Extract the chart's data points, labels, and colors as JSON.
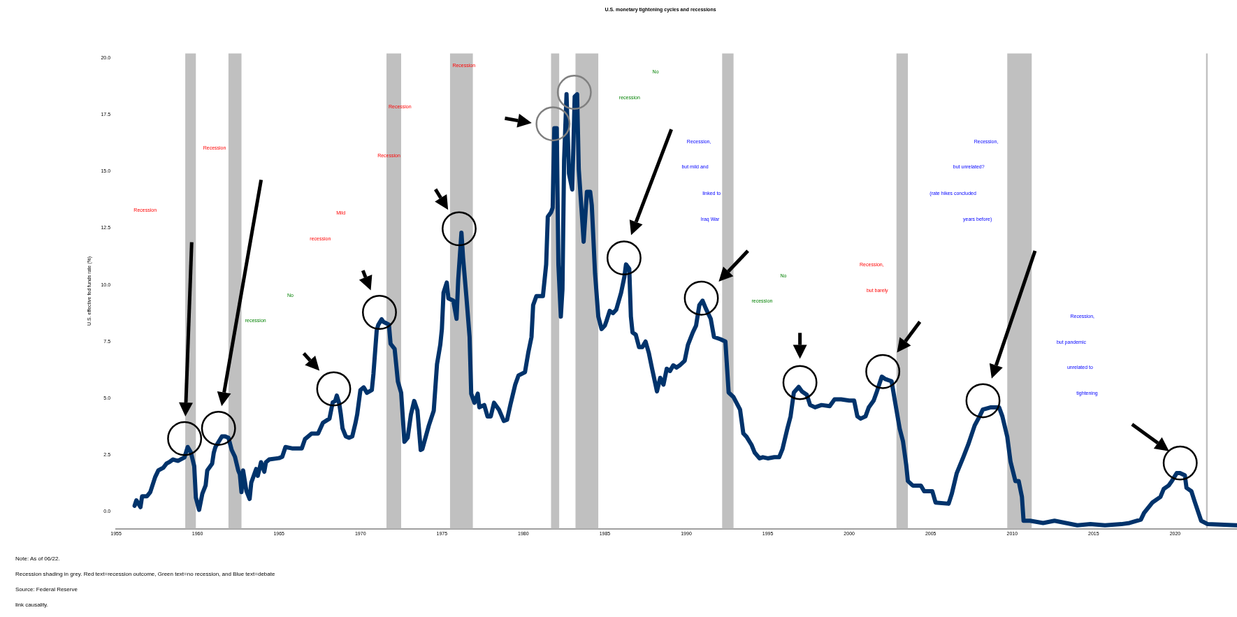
{
  "chart_data": {
    "type": "line",
    "title": "U.S. monetary tightening cycles and recessions",
    "ylabel": "U.S. effective fed funds rate (%)",
    "xlim": [
      1955,
      2023.8
    ],
    "xticks": [
      1955,
      1960,
      1965,
      1970,
      1975,
      1980,
      1985,
      1990,
      1995,
      2000,
      2005,
      2010,
      2015,
      2020
    ],
    "ylim": [
      -0.75,
      20.2
    ],
    "yticks": [
      {
        "value": 0,
        "label": "0.0"
      },
      2.5,
      {
        "value": 5,
        "label": "5.0"
      },
      7.5,
      {
        "value": 10,
        "label": "10.0"
      },
      12.5,
      {
        "value": 15,
        "label": "15.0"
      },
      17.5,
      {
        "value": 20,
        "label": "20.0"
      }
    ],
    "grid": false,
    "legend": false,
    "marker": "none",
    "line_style": "solid",
    "series": [
      {
        "color": "#00336b",
        "x": [
          1956.14,
          1956.25,
          1956.5,
          1956.6,
          1956.9,
          1957.1,
          1957.4,
          1957.6,
          1957.9,
          1958.1,
          1958.3,
          1958.5,
          1958.8,
          1959.2,
          1959.4,
          1959.6,
          1959.8,
          1959.9,
          1960.1,
          1960.3,
          1960.5,
          1960.6,
          1960.9,
          1961.0,
          1961.1,
          1961.5,
          1961.7,
          1961.9,
          1962.1,
          1962.3,
          1962.5,
          1962.6,
          1962.7,
          1962.8,
          1963.0,
          1963.2,
          1963.3,
          1963.6,
          1963.7,
          1963.9,
          1964.1,
          1964.2,
          1964.4,
          1965.0,
          1965.2,
          1965.4,
          1965.8,
          1966.4,
          1966.6,
          1967.0,
          1967.4,
          1967.7,
          1968.1,
          1968.3,
          1968.45,
          1968.55,
          1968.7,
          1968.8,
          1968.9,
          1969.1,
          1969.3,
          1969.5,
          1969.7,
          1969.8,
          1970.0,
          1970.2,
          1970.4,
          1970.7,
          1970.8,
          1971.0,
          1971.1,
          1971.3,
          1971.4,
          1971.6,
          1971.75,
          1971.85,
          1972.1,
          1972.3,
          1972.5,
          1972.7,
          1972.9,
          1973.1,
          1973.3,
          1973.5,
          1973.7,
          1973.8,
          1974.2,
          1974.5,
          1974.7,
          1974.9,
          1975.0,
          1975.1,
          1975.3,
          1975.4,
          1975.7,
          1975.9,
          1976.0,
          1976.2,
          1976.3,
          1976.5,
          1976.7,
          1976.8,
          1977.0,
          1977.2,
          1977.3,
          1977.6,
          1977.8,
          1978.0,
          1978.2,
          1978.5,
          1978.8,
          1979.0,
          1979.2,
          1979.5,
          1979.7,
          1980.1,
          1980.3,
          1980.5,
          1980.6,
          1980.8,
          1981.2,
          1981.3,
          1981.4,
          1981.5,
          1981.7,
          1981.8,
          1981.9,
          1982.05,
          1982.15,
          1982.3,
          1982.4,
          1982.5,
          1982.65,
          1982.8,
          1983.0,
          1983.15,
          1983.3,
          1983.4,
          1983.6,
          1983.7,
          1983.9,
          1984.1,
          1984.2,
          1984.4,
          1984.6,
          1984.8,
          1985.0,
          1985.1,
          1985.3,
          1985.5,
          1985.7,
          1986.0,
          1986.2,
          1986.3,
          1986.5,
          1986.6,
          1986.7,
          1986.9,
          1987.1,
          1987.3,
          1987.5,
          1987.7,
          1987.9,
          1988.2,
          1988.4,
          1988.6,
          1988.8,
          1989.0,
          1989.2,
          1989.4,
          1989.6,
          1989.9,
          1990.1,
          1990.4,
          1990.6,
          1990.8,
          1991.0,
          1991.2,
          1991.5,
          1991.7,
          1992.1,
          1992.4,
          1992.6,
          1992.9,
          1993.3,
          1993.5,
          1993.7,
          1994.0,
          1994.2,
          1994.5,
          1994.7,
          1995.0,
          1995.4,
          1995.7,
          1995.9,
          1996.2,
          1996.4,
          1996.6,
          1996.9,
          1997.1,
          1997.4,
          1997.6,
          1997.9,
          1998.3,
          1998.8,
          1999.1,
          1999.5,
          2000.0,
          2000.3,
          2000.5,
          2000.7,
          2001.0,
          2001.2,
          2001.5,
          2001.7,
          2002.0,
          2002.2,
          2002.6,
          2002.8,
          2003.1,
          2003.3,
          2003.5,
          2003.6,
          2003.9,
          2004.4,
          2004.6,
          2005.1,
          2005.3,
          2006.1,
          2006.3,
          2006.6,
          2007.0,
          2007.3,
          2007.7,
          2008.0,
          2008.2,
          2008.7,
          2009.2,
          2009.4,
          2009.7,
          2009.9,
          2010.2,
          2010.4,
          2010.6,
          2010.7,
          2011.1,
          2011.9,
          2012.6,
          2013.3,
          2014.0,
          2014.8,
          2015.7,
          2016.7,
          2017.2,
          2017.9,
          2018.1,
          2018.6,
          2019.1,
          2019.3,
          2019.6,
          2019.8,
          2020.1,
          2020.3,
          2020.6,
          2020.7,
          2021.0,
          2021.2,
          2021.6,
          2022.0,
          2023.8
        ],
        "values": [
          0.26,
          0.5,
          0.2,
          0.68,
          0.68,
          0.86,
          1.52,
          1.82,
          1.94,
          2.12,
          2.2,
          2.3,
          2.24,
          2.39,
          2.85,
          2.6,
          2.0,
          0.62,
          0.08,
          0.8,
          1.16,
          1.82,
          2.12,
          2.6,
          2.85,
          3.32,
          3.32,
          3.26,
          2.72,
          2.42,
          1.82,
          1.64,
          0.86,
          1.82,
          0.92,
          0.56,
          1.28,
          1.88,
          1.58,
          2.18,
          1.76,
          2.18,
          2.3,
          2.36,
          2.42,
          2.85,
          2.79,
          2.79,
          3.2,
          3.44,
          3.44,
          3.92,
          4.1,
          4.82,
          4.88,
          5.12,
          4.76,
          4.28,
          3.68,
          3.32,
          3.26,
          3.32,
          3.92,
          4.28,
          5.36,
          5.48,
          5.24,
          5.36,
          6.08,
          8.0,
          8.24,
          8.48,
          8.37,
          8.3,
          8.24,
          7.4,
          7.17,
          5.73,
          5.24,
          3.08,
          3.26,
          4.28,
          4.88,
          4.46,
          2.72,
          2.76,
          3.8,
          4.45,
          6.5,
          7.35,
          8.05,
          9.65,
          10.1,
          9.4,
          9.3,
          8.5,
          10.2,
          12.3,
          11.2,
          9.5,
          7.7,
          5.2,
          4.8,
          5.2,
          4.6,
          4.7,
          4.2,
          4.2,
          4.8,
          4.5,
          4.0,
          4.05,
          4.7,
          5.6,
          6.0,
          6.15,
          7.0,
          7.7,
          9.1,
          9.5,
          9.5,
          10.2,
          10.9,
          13.0,
          13.2,
          13.4,
          16.9,
          16.9,
          10.9,
          8.6,
          9.8,
          15.5,
          18.4,
          14.9,
          14.2,
          18.3,
          18.4,
          15.1,
          13.0,
          11.9,
          14.1,
          14.1,
          13.5,
          10.5,
          8.6,
          8.05,
          8.2,
          8.4,
          8.85,
          8.75,
          8.9,
          9.65,
          10.35,
          10.9,
          10.7,
          8.6,
          7.9,
          7.8,
          7.25,
          7.25,
          7.5,
          7.0,
          6.3,
          5.3,
          5.9,
          5.6,
          6.3,
          6.2,
          6.45,
          6.35,
          6.45,
          6.65,
          7.35,
          7.9,
          8.2,
          9.1,
          9.3,
          8.95,
          8.5,
          7.7,
          7.6,
          7.5,
          5.25,
          5.05,
          4.5,
          3.45,
          3.3,
          2.95,
          2.6,
          2.35,
          2.4,
          2.35,
          2.4,
          2.4,
          2.75,
          3.65,
          4.2,
          5.25,
          5.5,
          5.3,
          5.15,
          4.7,
          4.6,
          4.7,
          4.65,
          4.95,
          4.95,
          4.9,
          4.9,
          4.2,
          4.1,
          4.2,
          4.6,
          4.9,
          5.3,
          5.95,
          5.85,
          5.75,
          4.9,
          3.65,
          3.1,
          2.05,
          1.35,
          1.15,
          1.15,
          0.9,
          0.9,
          0.4,
          0.35,
          0.8,
          1.7,
          2.4,
          2.95,
          3.8,
          4.2,
          4.5,
          4.6,
          4.6,
          4.2,
          3.3,
          2.2,
          1.35,
          1.35,
          0.65,
          -0.4,
          -0.4,
          -0.5,
          -0.4,
          -0.5,
          -0.6,
          -0.55,
          -0.6,
          -0.55,
          -0.5,
          -0.35,
          -0.05,
          0.4,
          0.65,
          1.0,
          1.15,
          1.35,
          1.7,
          1.7,
          1.6,
          1.05,
          0.9,
          0.45,
          -0.4,
          -0.55,
          -0.6
        ]
      }
    ],
    "bands": [
      {
        "axis": "x",
        "from": 1959.25,
        "to": 1959.9,
        "color": "#c0c0c0"
      },
      {
        "axis": "x",
        "from": 1961.9,
        "to": 1962.7,
        "color": "#c0c0c0"
      },
      {
        "axis": "x",
        "from": 1971.6,
        "to": 1972.5,
        "color": "#c0c0c0"
      },
      {
        "axis": "x",
        "from": 1975.5,
        "to": 1976.9,
        "color": "#c0c0c0"
      },
      {
        "axis": "x",
        "from": 1981.7,
        "to": 1982.2,
        "color": "#c0c0c0"
      },
      {
        "axis": "x",
        "from": 1983.2,
        "to": 1984.6,
        "color": "#c0c0c0"
      },
      {
        "axis": "x",
        "from": 1992.2,
        "to": 1992.9,
        "color": "#c0c0c0"
      },
      {
        "axis": "x",
        "from": 2002.9,
        "to": 2003.6,
        "color": "#c0c0c0"
      },
      {
        "axis": "x",
        "from": 2009.7,
        "to": 2011.2,
        "color": "#c0c0c0"
      },
      {
        "axis": "x",
        "from": 2021.9,
        "to": 2022.0,
        "color": "#c0c0c0"
      }
    ],
    "annotations": [
      "Recession",
      "Recession",
      "recession",
      "No",
      "recession",
      "Mild",
      "Recession",
      "Recession",
      "Recession",
      "No",
      "recession",
      "Recession,",
      "but mild and",
      "linked to",
      "Iraq War",
      "No",
      "recession",
      "Recession,",
      "but barely",
      "Recession,",
      "but unrelated?",
      "(rate hikes concluded",
      "years before)",
      "Recession,",
      "but pandemic",
      "unrelated to",
      "tightening",
      "Note: As of 06/22.",
      "Recession shading in grey. Red text=recession outcome, Green text=no recession, and Blue text=debate",
      "Source: Federal Reserve",
      "link causality."
    ]
  }
}
